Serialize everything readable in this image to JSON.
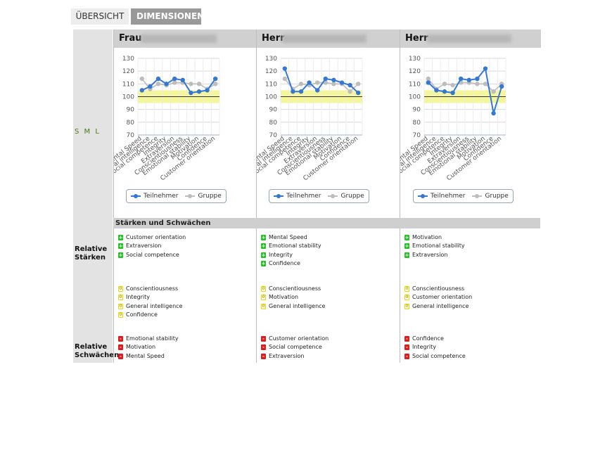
{
  "tabs": {
    "overview": "ÜBERSICHT",
    "dimensions": "DIMENSIONEN"
  },
  "sidebar": {
    "sml": "S M L",
    "strengths_label": "Relative\nStärken",
    "weaknesses_label": "Relative\nSchwächen"
  },
  "section": {
    "title": "Stärken und Schwächen"
  },
  "colors": {
    "participant": "#3578d4",
    "group": "#bdbdbd",
    "band": "#f5f69a"
  },
  "chart_data": [
    {
      "type": "line",
      "categories": [
        "Mental Speed",
        "General intelligence",
        "Social competence",
        "Integrity",
        "Extraversion",
        "Conscientiousness",
        "Emotional stability",
        "Motivation",
        "Confidence",
        "Customer orientation"
      ],
      "series": [
        {
          "name": "Teilnehmer",
          "values": [
            105,
            108,
            114,
            110,
            114,
            113,
            103,
            104,
            105,
            114
          ]
        },
        {
          "name": "Gruppe",
          "values": [
            114,
            106,
            110,
            109,
            111,
            111,
            110,
            110,
            106,
            110
          ]
        }
      ],
      "ylim": [
        70,
        130
      ],
      "yticks": [
        70,
        80,
        90,
        100,
        110,
        120,
        130
      ],
      "band": [
        95,
        105
      ],
      "reference": 100
    },
    {
      "type": "line",
      "categories": [
        "Mental Speed",
        "General intelligence",
        "Social competence",
        "Integrity",
        "Extraversion",
        "Conscientiousness",
        "Emotional stability",
        "Motivation",
        "Confidence",
        "Customer orientation"
      ],
      "series": [
        {
          "name": "Teilnehmer",
          "values": [
            122,
            104,
            104,
            111,
            105,
            114,
            113,
            111,
            109,
            103
          ]
        },
        {
          "name": "Gruppe",
          "values": [
            114,
            106,
            110,
            109,
            111,
            111,
            110,
            110,
            104,
            110
          ]
        }
      ],
      "ylim": [
        70,
        130
      ],
      "yticks": [
        70,
        80,
        90,
        100,
        110,
        120,
        130
      ],
      "band": [
        95,
        105
      ],
      "reference": 100
    },
    {
      "type": "line",
      "categories": [
        "Mental Speed",
        "General intelligence",
        "Social competence",
        "Integrity",
        "Extraversion",
        "Conscientiousness",
        "Emotional stability",
        "Motivation",
        "Confidence",
        "Customer orientation"
      ],
      "series": [
        {
          "name": "Teilnehmer",
          "values": [
            111,
            105,
            104,
            103,
            114,
            113,
            114,
            122,
            87,
            108
          ]
        },
        {
          "name": "Gruppe",
          "values": [
            114,
            106,
            110,
            109,
            111,
            111,
            110,
            110,
            104,
            110
          ]
        }
      ],
      "ylim": [
        70,
        130
      ],
      "yticks": [
        70,
        80,
        90,
        100,
        110,
        120,
        130
      ],
      "band": [
        95,
        105
      ],
      "reference": 100
    }
  ],
  "persons": [
    {
      "salutation": "Frau",
      "strengths": [
        "Customer orientation",
        "Extraversion",
        "Social competence"
      ],
      "neutral": [
        "Conscientiousness",
        "Integrity",
        "General intelligence",
        "Confidence"
      ],
      "weaknesses": [
        "Emotional stability",
        "Motivation",
        "Mental Speed"
      ]
    },
    {
      "salutation": "Herr",
      "strengths": [
        "Mental Speed",
        "Emotional stability",
        "Integrity",
        "Confidence"
      ],
      "neutral": [
        "Conscientiousness",
        "Motivation",
        "General intelligence"
      ],
      "weaknesses": [
        "Customer orientation",
        "Social competence",
        "Extraversion"
      ]
    },
    {
      "salutation": "Herr",
      "strengths": [
        "Motivation",
        "Emotional stability",
        "Extraversion"
      ],
      "neutral": [
        "Conscientiousness",
        "Customer orientation",
        "General intelligence"
      ],
      "weaknesses": [
        "Confidence",
        "Integrity",
        "Social competence"
      ]
    }
  ],
  "badges": {
    "plus": "+",
    "zero": "0",
    "minus": "-"
  }
}
